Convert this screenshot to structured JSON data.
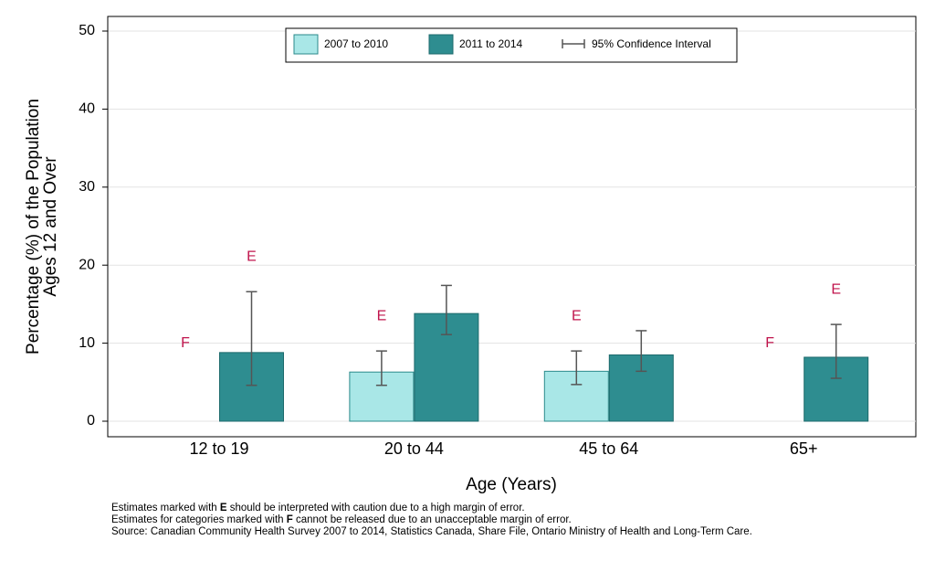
{
  "chart_data": {
    "type": "bar",
    "y_label": [
      "Percentage (%) of the Population",
      "Ages 12 and Over"
    ],
    "x_label": "Age (Years)",
    "categories": [
      "12 to 19",
      "20 to 44",
      "45 to 64",
      "65+"
    ],
    "series": [
      {
        "name": "2007 to 2010",
        "color": "#a9e7e7",
        "edge": "#2b8a8b",
        "values": [
          null,
          6.3,
          6.4,
          null
        ],
        "ci_low": [
          null,
          4.6,
          4.7,
          null
        ],
        "ci_high": [
          null,
          9.0,
          9.0,
          null
        ],
        "flags": [
          "F",
          "E",
          "E",
          "F"
        ]
      },
      {
        "name": "2011 to 2014",
        "color": "#2e8d90",
        "edge": "#1d6a6c",
        "values": [
          8.8,
          13.8,
          8.5,
          8.2
        ],
        "ci_low": [
          4.6,
          11.1,
          6.4,
          5.5
        ],
        "ci_high": [
          16.6,
          17.4,
          11.6,
          12.4
        ],
        "flags": [
          "E",
          null,
          null,
          "E"
        ]
      }
    ],
    "ci_label": "95% Confidence Interval",
    "ylim": [
      0,
      52
    ],
    "yticks": [
      0,
      10,
      20,
      30,
      40,
      50
    ],
    "grid": true,
    "notes": [
      [
        "Estimates marked with ",
        "E",
        " should be interpreted with caution due to a high margin of error."
      ],
      [
        "Estimates for categories marked with ",
        "F",
        " cannot be released due to an unacceptable margin of error."
      ],
      [
        "Source: Canadian Community Health Survey 2007 to 2014, Statistics Canada, Share File, Ontario Ministry of Health and Long-Term Care."
      ]
    ]
  }
}
